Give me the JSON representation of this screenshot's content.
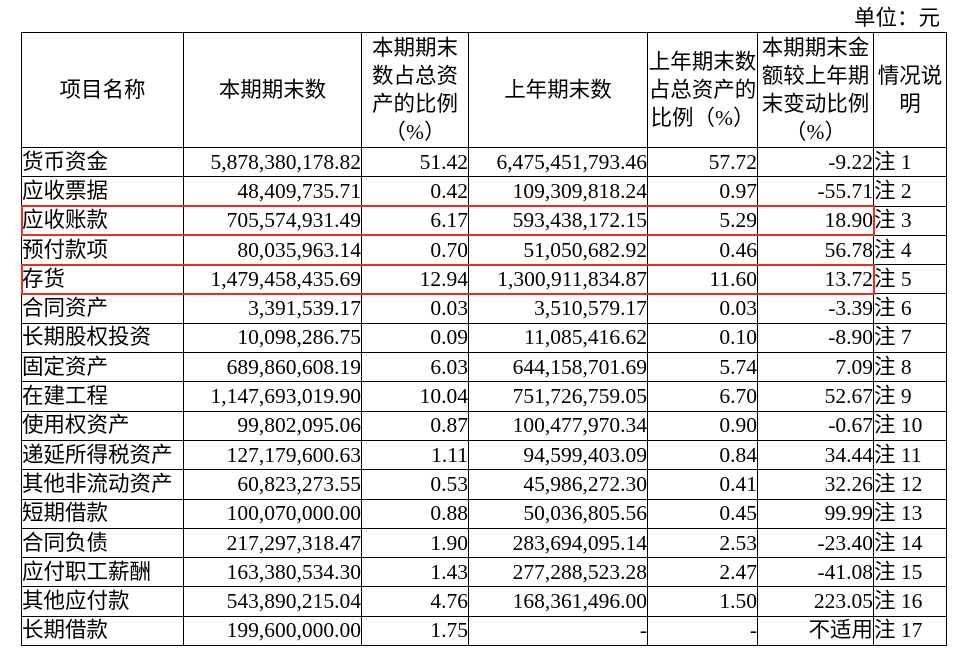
{
  "unit_label": "单位：元",
  "highlight_color": "#e8302a",
  "table": {
    "columns": [
      {
        "lines": [
          "项目名称"
        ]
      },
      {
        "lines": [
          "本期期末数"
        ]
      },
      {
        "lines": [
          "本期期末",
          "数占总资",
          "产的比例",
          "（%）"
        ]
      },
      {
        "lines": [
          "上年期末数"
        ]
      },
      {
        "lines": [
          "上年期末数",
          "占总资产的",
          "比例（%）"
        ]
      },
      {
        "lines": [
          "本期期末金",
          "额较上年期",
          "末变动比例",
          "（%）"
        ]
      },
      {
        "lines": [
          "情况说",
          "明"
        ]
      }
    ],
    "rows": [
      {
        "item": "货币资金",
        "current": "5,878,380,178.82",
        "current_pct": "51.42",
        "prior": "6,475,451,793.46",
        "prior_pct": "57.72",
        "change_pct": "-9.22",
        "note": "注 1"
      },
      {
        "item": "应收票据",
        "current": "48,409,735.71",
        "current_pct": "0.42",
        "prior": "109,309,818.24",
        "prior_pct": "0.97",
        "change_pct": "-55.71",
        "note": "注 2"
      },
      {
        "item": "应收账款",
        "current": "705,574,931.49",
        "current_pct": "6.17",
        "prior": "593,438,172.15",
        "prior_pct": "5.29",
        "change_pct": "18.90",
        "note": "注 3",
        "highlighted": true
      },
      {
        "item": "预付款项",
        "current": "80,035,963.14",
        "current_pct": "0.70",
        "prior": "51,050,682.92",
        "prior_pct": "0.46",
        "change_pct": "56.78",
        "note": "注 4"
      },
      {
        "item": "存货",
        "current": "1,479,458,435.69",
        "current_pct": "12.94",
        "prior": "1,300,911,834.87",
        "prior_pct": "11.60",
        "change_pct": "13.72",
        "note": "注 5",
        "highlighted": true
      },
      {
        "item": "合同资产",
        "current": "3,391,539.17",
        "current_pct": "0.03",
        "prior": "3,510,579.17",
        "prior_pct": "0.03",
        "change_pct": "-3.39",
        "note": "注 6"
      },
      {
        "item": "长期股权投资",
        "current": "10,098,286.75",
        "current_pct": "0.09",
        "prior": "11,085,416.62",
        "prior_pct": "0.10",
        "change_pct": "-8.90",
        "note": "注 7"
      },
      {
        "item": "固定资产",
        "current": "689,860,608.19",
        "current_pct": "6.03",
        "prior": "644,158,701.69",
        "prior_pct": "5.74",
        "change_pct": "7.09",
        "note": "注 8"
      },
      {
        "item": "在建工程",
        "current": "1,147,693,019.90",
        "current_pct": "10.04",
        "prior": "751,726,759.05",
        "prior_pct": "6.70",
        "change_pct": "52.67",
        "note": "注 9"
      },
      {
        "item": "使用权资产",
        "current": "99,802,095.06",
        "current_pct": "0.87",
        "prior": "100,477,970.34",
        "prior_pct": "0.90",
        "change_pct": "-0.67",
        "note": "注 10"
      },
      {
        "item": "递延所得税资产",
        "current": "127,179,600.63",
        "current_pct": "1.11",
        "prior": "94,599,403.09",
        "prior_pct": "0.84",
        "change_pct": "34.44",
        "note": "注 11"
      },
      {
        "item": "其他非流动资产",
        "current": "60,823,273.55",
        "current_pct": "0.53",
        "prior": "45,986,272.30",
        "prior_pct": "0.41",
        "change_pct": "32.26",
        "note": "注 12"
      },
      {
        "item": "短期借款",
        "current": "100,070,000.00",
        "current_pct": "0.88",
        "prior": "50,036,805.56",
        "prior_pct": "0.45",
        "change_pct": "99.99",
        "note": "注 13"
      },
      {
        "item": "合同负债",
        "current": "217,297,318.47",
        "current_pct": "1.90",
        "prior": "283,694,095.14",
        "prior_pct": "2.53",
        "change_pct": "-23.40",
        "note": "注 14"
      },
      {
        "item": "应付职工薪酬",
        "current": "163,380,534.30",
        "current_pct": "1.43",
        "prior": "277,288,523.28",
        "prior_pct": "2.47",
        "change_pct": "-41.08",
        "note": "注 15"
      },
      {
        "item": "其他应付款",
        "current": "543,890,215.04",
        "current_pct": "4.76",
        "prior": "168,361,496.00",
        "prior_pct": "1.50",
        "change_pct": "223.05",
        "note": "注 16"
      },
      {
        "item": "长期借款",
        "current": "199,600,000.00",
        "current_pct": "1.75",
        "prior": "-",
        "prior_pct": "-",
        "change_pct": "不适用",
        "note": "注 17"
      }
    ]
  }
}
